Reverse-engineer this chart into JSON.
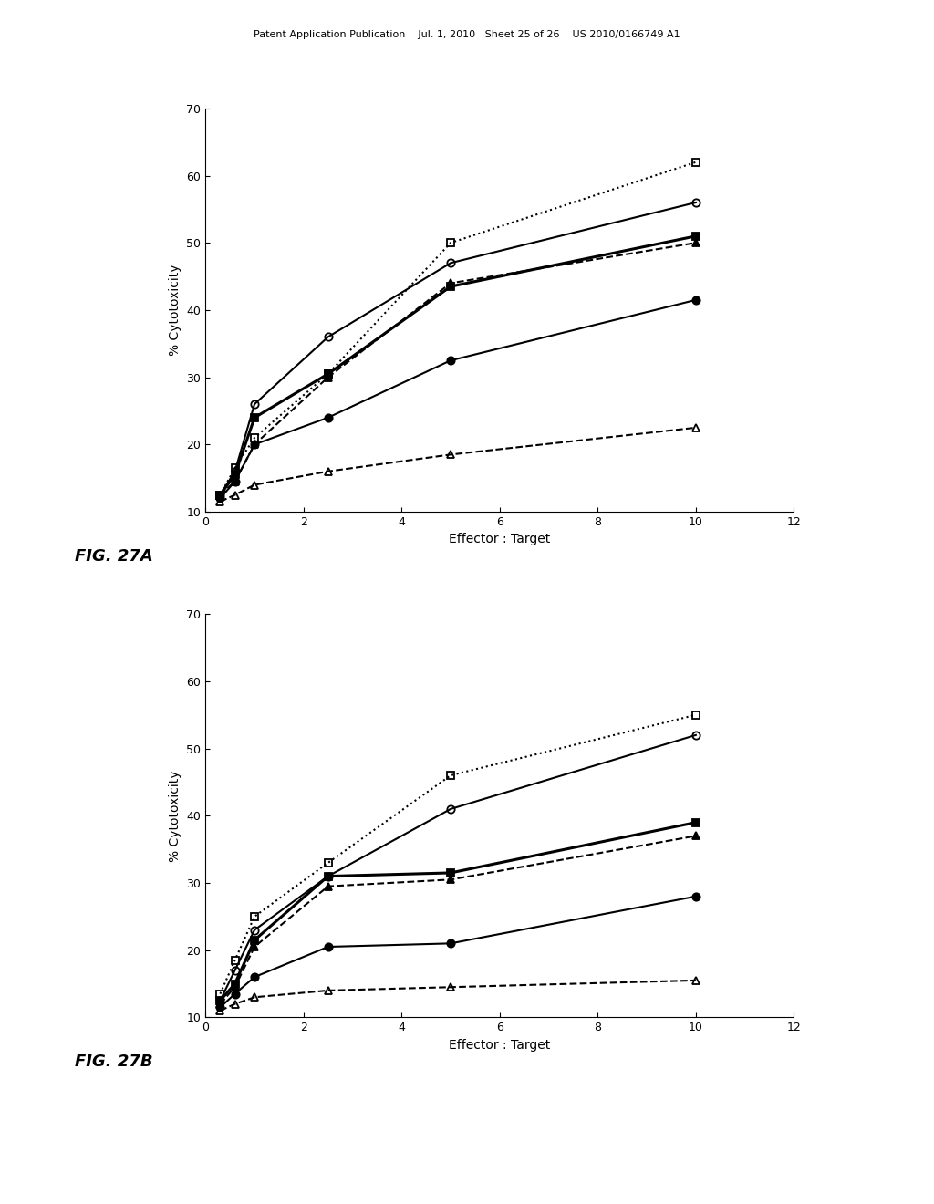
{
  "background_color": "#ffffff",
  "header_text": "Patent Application Publication    Jul. 1, 2010   Sheet 25 of 26    US 2010/0166749 A1",
  "fig27A": {
    "xlabel": "Effector : Target",
    "ylabel": "% Cytotoxicity",
    "figlabel": "FIG. 27A",
    "xlim": [
      0,
      12
    ],
    "ylim": [
      10,
      70
    ],
    "xticks": [
      0,
      2,
      4,
      6,
      8,
      10,
      12
    ],
    "yticks": [
      10,
      20,
      30,
      40,
      50,
      60,
      70
    ],
    "series": [
      {
        "x": [
          0.3,
          0.6,
          1.0,
          2.5,
          5.0,
          10.0
        ],
        "y": [
          12.5,
          16.5,
          21.0,
          30.5,
          50.0,
          62.0
        ],
        "marker": "s",
        "fillstyle": "none",
        "color": "#000000",
        "linestyle": "dotted",
        "linewidth": 1.5,
        "markersize": 6
      },
      {
        "x": [
          0.3,
          0.6,
          1.0,
          2.5,
          5.0,
          10.0
        ],
        "y": [
          12.5,
          16.0,
          26.0,
          36.0,
          47.0,
          56.0
        ],
        "marker": "o",
        "fillstyle": "none",
        "color": "#000000",
        "linestyle": "solid",
        "linewidth": 1.5,
        "markersize": 6
      },
      {
        "x": [
          0.3,
          0.6,
          1.0,
          2.5,
          5.0,
          10.0
        ],
        "y": [
          12.5,
          15.5,
          24.0,
          30.5,
          43.5,
          51.0
        ],
        "marker": "s",
        "fillstyle": "full",
        "color": "#000000",
        "linestyle": "solid",
        "linewidth": 2.2,
        "markersize": 6
      },
      {
        "x": [
          0.3,
          0.6,
          1.0,
          2.5,
          5.0,
          10.0
        ],
        "y": [
          12.5,
          14.5,
          20.0,
          30.0,
          44.0,
          50.0
        ],
        "marker": "^",
        "fillstyle": "full",
        "color": "#000000",
        "linestyle": "dashed",
        "linewidth": 1.5,
        "markersize": 6
      },
      {
        "x": [
          0.3,
          0.6,
          1.0,
          2.5,
          5.0,
          10.0
        ],
        "y": [
          12.0,
          14.5,
          20.0,
          24.0,
          32.5,
          41.5
        ],
        "marker": "o",
        "fillstyle": "full",
        "color": "#000000",
        "linestyle": "solid",
        "linewidth": 1.5,
        "markersize": 6
      },
      {
        "x": [
          0.3,
          0.6,
          1.0,
          2.5,
          5.0,
          10.0
        ],
        "y": [
          11.5,
          12.5,
          14.0,
          16.0,
          18.5,
          22.5
        ],
        "marker": "^",
        "fillstyle": "none",
        "color": "#000000",
        "linestyle": "dashed",
        "linewidth": 1.5,
        "markersize": 6
      }
    ]
  },
  "fig27B": {
    "xlabel": "Effector : Target",
    "ylabel": "% Cytotoxicity",
    "figlabel": "FIG. 27B",
    "xlim": [
      0,
      12
    ],
    "ylim": [
      10,
      70
    ],
    "xticks": [
      0,
      2,
      4,
      6,
      8,
      10,
      12
    ],
    "yticks": [
      10,
      20,
      30,
      40,
      50,
      60,
      70
    ],
    "series": [
      {
        "x": [
          0.3,
          0.6,
          1.0,
          2.5,
          5.0,
          10.0
        ],
        "y": [
          13.5,
          18.5,
          25.0,
          33.0,
          46.0,
          55.0
        ],
        "marker": "s",
        "fillstyle": "none",
        "color": "#000000",
        "linestyle": "dotted",
        "linewidth": 1.5,
        "markersize": 6
      },
      {
        "x": [
          0.3,
          0.6,
          1.0,
          2.5,
          5.0,
          10.0
        ],
        "y": [
          12.5,
          17.0,
          23.0,
          31.0,
          41.0,
          52.0
        ],
        "marker": "o",
        "fillstyle": "none",
        "color": "#000000",
        "linestyle": "solid",
        "linewidth": 1.5,
        "markersize": 6
      },
      {
        "x": [
          0.3,
          0.6,
          1.0,
          2.5,
          5.0,
          10.0
        ],
        "y": [
          12.5,
          15.0,
          21.5,
          31.0,
          31.5,
          39.0
        ],
        "marker": "s",
        "fillstyle": "full",
        "color": "#000000",
        "linestyle": "solid",
        "linewidth": 2.2,
        "markersize": 6
      },
      {
        "x": [
          0.3,
          0.6,
          1.0,
          2.5,
          5.0,
          10.0
        ],
        "y": [
          12.0,
          14.5,
          20.5,
          29.5,
          30.5,
          37.0
        ],
        "marker": "^",
        "fillstyle": "full",
        "color": "#000000",
        "linestyle": "dashed",
        "linewidth": 1.5,
        "markersize": 6
      },
      {
        "x": [
          0.3,
          0.6,
          1.0,
          2.5,
          5.0,
          10.0
        ],
        "y": [
          11.5,
          13.5,
          16.0,
          20.5,
          21.0,
          28.0
        ],
        "marker": "o",
        "fillstyle": "full",
        "color": "#000000",
        "linestyle": "solid",
        "linewidth": 1.5,
        "markersize": 6
      },
      {
        "x": [
          0.3,
          0.6,
          1.0,
          2.5,
          5.0,
          10.0
        ],
        "y": [
          11.0,
          12.0,
          13.0,
          14.0,
          14.5,
          15.5
        ],
        "marker": "^",
        "fillstyle": "none",
        "color": "#000000",
        "linestyle": "dashed",
        "linewidth": 1.5,
        "markersize": 6
      }
    ]
  }
}
